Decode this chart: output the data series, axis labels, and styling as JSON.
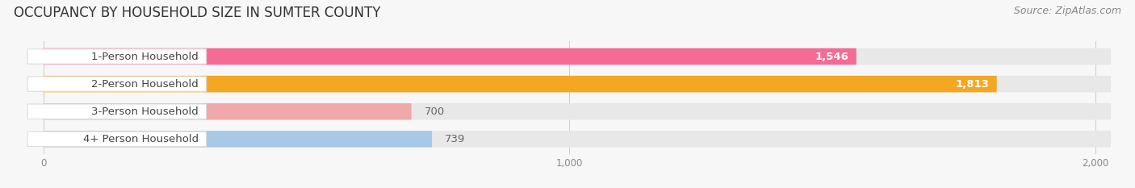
{
  "title": "OCCUPANCY BY HOUSEHOLD SIZE IN SUMTER COUNTY",
  "source": "Source: ZipAtlas.com",
  "categories": [
    "1-Person Household",
    "2-Person Household",
    "3-Person Household",
    "4+ Person Household"
  ],
  "values": [
    1546,
    1813,
    700,
    739
  ],
  "bar_colors": [
    "#f46b95",
    "#f5a623",
    "#f0a8a8",
    "#a8c8e8"
  ],
  "value_inside": [
    true,
    true,
    false,
    false
  ],
  "xlim": [
    0,
    2000
  ],
  "xticks": [
    0,
    1000,
    2000
  ],
  "xticklabels": [
    "0",
    "1,000",
    "2,000"
  ],
  "background_color": "#f7f7f7",
  "title_fontsize": 12,
  "label_fontsize": 9.5,
  "value_fontsize": 9.5,
  "source_fontsize": 9
}
